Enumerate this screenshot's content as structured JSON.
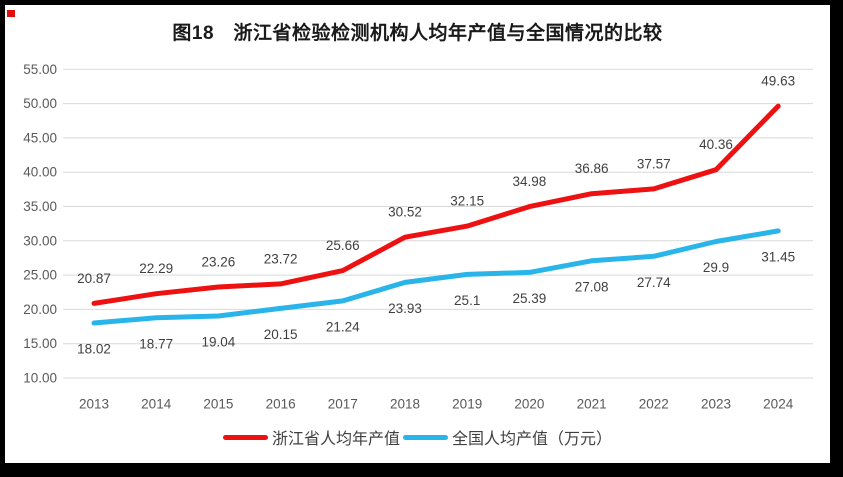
{
  "title": "图18　浙江省检验检测机构人均年产值与全国情况的比较",
  "chart_data": {
    "type": "line",
    "x": [
      2013,
      2014,
      2015,
      2016,
      2017,
      2018,
      2019,
      2020,
      2021,
      2022,
      2023,
      2024
    ],
    "series": [
      {
        "name": "浙江省人均年产值",
        "color": "#ee1111",
        "values": [
          20.87,
          22.29,
          23.26,
          23.72,
          25.66,
          30.52,
          32.15,
          34.98,
          36.86,
          37.57,
          40.36,
          49.63
        ],
        "labels": [
          "20.87",
          "22.29",
          "23.26",
          "23.72",
          "25.66",
          "30.52",
          "32.15",
          "34.98",
          "36.86",
          "37.57",
          "40.36",
          "49.63"
        ],
        "label_side": "above"
      },
      {
        "name": "全国人均产值（万元）",
        "color": "#29b5ea",
        "values": [
          18.02,
          18.77,
          19.04,
          20.15,
          21.24,
          23.93,
          25.1,
          25.39,
          27.08,
          27.74,
          29.9,
          31.45
        ],
        "labels": [
          "18.02",
          "18.77",
          "19.04",
          "20.15",
          "21.24",
          "23.93",
          "25.1",
          "25.39",
          "27.08",
          "27.74",
          "29.9",
          "31.45"
        ],
        "label_side": "below"
      }
    ],
    "ylim": [
      10,
      55
    ],
    "y_tick_labels": [
      "10.00",
      "15.00",
      "20.00",
      "25.00",
      "30.00",
      "35.00",
      "40.00",
      "45.00",
      "50.00",
      "55.00"
    ],
    "xlabel": "",
    "ylabel": "",
    "grid": true,
    "legend_position": "bottom",
    "gridline_color": "#d9d9d9",
    "tick_label_color": "#595959",
    "data_label_color": "#404040"
  }
}
